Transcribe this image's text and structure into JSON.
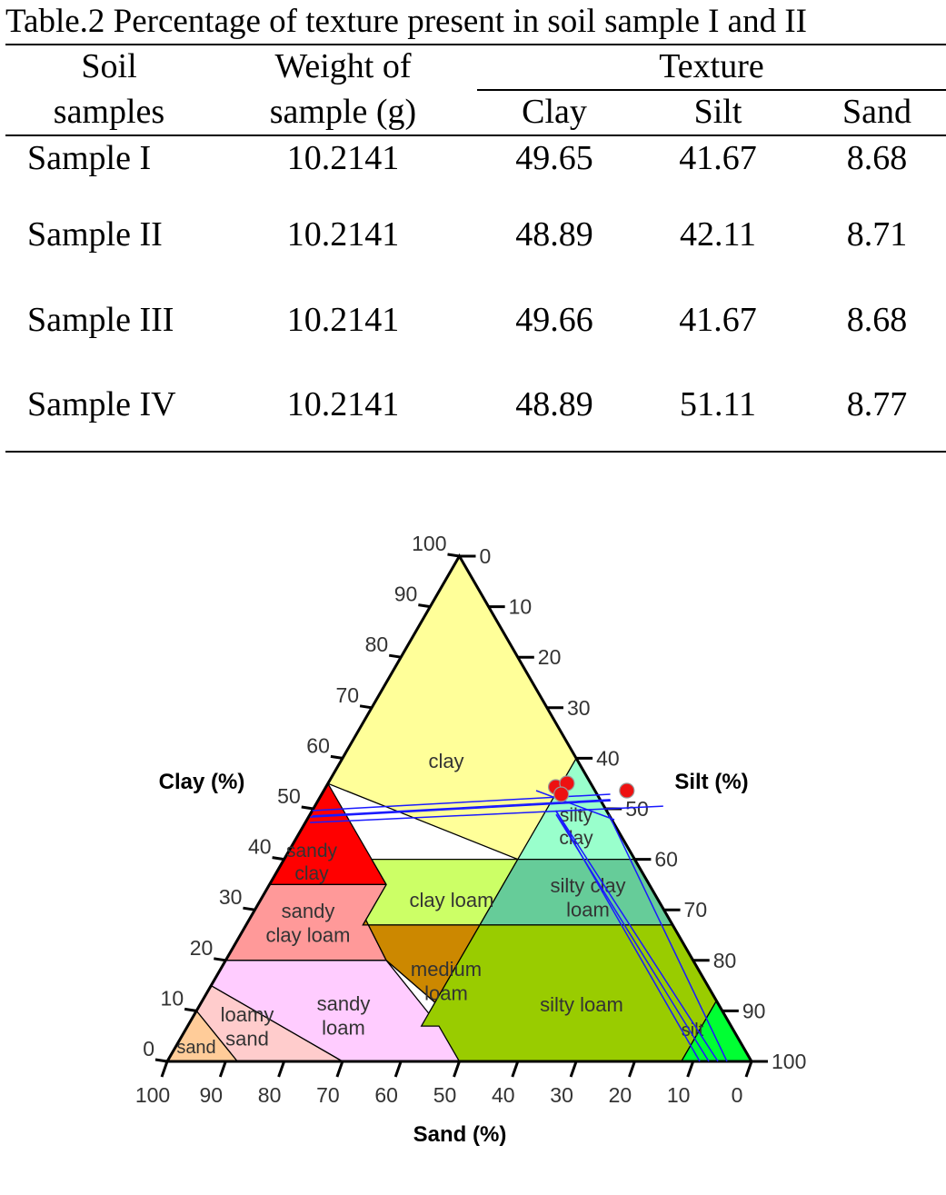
{
  "caption": "Table.2 Percentage of texture present in soil sample I and II",
  "table": {
    "headers": {
      "soil_samples": [
        "Soil",
        "samples"
      ],
      "weight": [
        "Weight of",
        "sample (g)"
      ],
      "texture": "Texture",
      "clay": "Clay",
      "silt": "Silt",
      "sand": "Sand"
    },
    "rows": [
      {
        "sample": "Sample I",
        "weight": "10.2141",
        "clay": "49.65",
        "silt": "41.67",
        "sand": "8.68"
      },
      {
        "sample": "Sample II",
        "weight": "10.2141",
        "clay": "48.89",
        "silt": "42.11",
        "sand": "8.71"
      },
      {
        "sample": "Sample III",
        "weight": "10.2141",
        "clay": "49.66",
        "silt": "41.67",
        "sand": "8.68"
      },
      {
        "sample": "Sample IV",
        "weight": "10.2141",
        "clay": "48.89",
        "silt": "51.11",
        "sand": "8.77"
      }
    ]
  },
  "diagram": {
    "axis_titles": {
      "clay": "Clay (%)",
      "silt": "Silt (%)",
      "sand": "Sand (%)"
    },
    "clay_ticks": [
      "100",
      "90",
      "80",
      "70",
      "60",
      "50",
      "40",
      "30",
      "20",
      "10",
      "0"
    ],
    "silt_ticks": [
      "0",
      "10",
      "20",
      "30",
      "40",
      "50",
      "60",
      "70",
      "80",
      "90",
      "100"
    ],
    "sand_ticks": [
      "100",
      "90",
      "80",
      "70",
      "60",
      "50",
      "40",
      "30",
      "20",
      "10",
      "0"
    ],
    "regions": {
      "clay": "clay",
      "sandy_clay": "sandy clay",
      "silty_clay": "silty clay",
      "sandy_clay_loam": "sandy clay loam",
      "clay_loam": "clay loam",
      "silty_clay_loam": "silty clay loam",
      "medium_loam": "medium loam",
      "sandy_loam": "sandy loam",
      "loamy_sand": "loamy sand",
      "sand": "sand",
      "silty_loam": "silty loam",
      "silt": "silt"
    },
    "colors": {
      "clay": "#ffff99",
      "sandy_clay": "#ff0000",
      "silty_clay": "#99ffcc",
      "sandy_clay_loam": "#ff9999",
      "clay_loam": "#ccff66",
      "silty_clay_loam": "#66cc99",
      "medium_loam": "#cc8800",
      "sandy_loam": "#ffccff",
      "loamy_sand": "#ffcccc",
      "sand": "#ffcc99",
      "silty_loam": "#99cc00",
      "silt": "#00ff33",
      "plot_lines": "#1a1aff",
      "sample_points": "#ee1111"
    },
    "plotted_samples": [
      {
        "clay": 49.65,
        "silt": 41.67
      },
      {
        "clay": 48.89,
        "silt": 42.11
      },
      {
        "clay": 49.66,
        "silt": 41.67
      },
      {
        "clay": 48.89,
        "silt": 51.11
      }
    ]
  }
}
